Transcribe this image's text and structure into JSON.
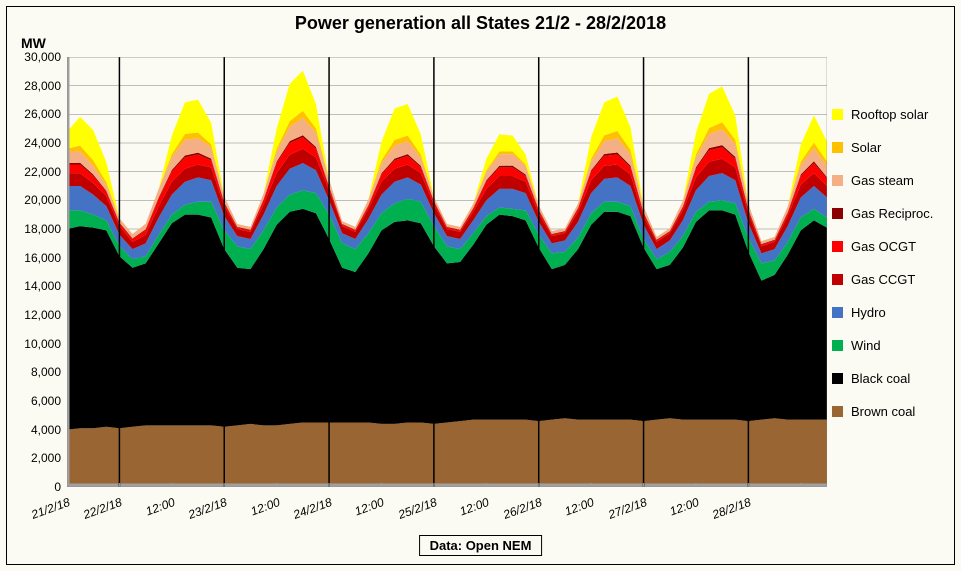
{
  "title": "Power generation all States 21/2 - 28/2/2018",
  "ylabel": "MW",
  "source": "Data: Open NEM",
  "chart": {
    "type": "stacked-area",
    "background_color": "#fcfbf3",
    "grid_color": "#808080",
    "grid_width": 0.5,
    "tick_font_size": 12,
    "title_font_size": 18,
    "label_font_size": 14,
    "ylim": [
      0,
      30000
    ],
    "yticks": [
      0,
      2000,
      4000,
      6000,
      8000,
      10000,
      12000,
      14000,
      16000,
      18000,
      20000,
      22000,
      24000,
      26000,
      28000,
      30000
    ],
    "ytick_labels": [
      "0",
      "2,000",
      "4,000",
      "6,000",
      "8,000",
      "10,000",
      "12,000",
      "14,000",
      "16,000",
      "18,000",
      "20,000",
      "22,000",
      "24,000",
      "26,000",
      "28,000",
      "30,000"
    ],
    "xtick_positions": [
      0,
      1,
      2,
      3,
      4,
      5,
      6,
      7,
      8,
      9,
      10,
      11,
      12,
      13,
      14
    ],
    "xtick_labels": [
      "21/2/18",
      "22/2/18",
      "12:00",
      "23/2/18",
      "12:00",
      "24/2/18",
      "12:00",
      "25/2/18",
      "12:00",
      "26/2/18",
      "12:00",
      "27/2/18",
      "12:00",
      "28/2/18",
      ""
    ],
    "vlines": [
      1,
      3,
      5,
      7,
      9,
      11,
      13
    ],
    "x_domain": [
      0,
      14.5
    ],
    "legend": [
      {
        "label": "Rooftop solar",
        "color": "#ffff00"
      },
      {
        "label": "Solar",
        "color": "#ffc000"
      },
      {
        "label": "Gas steam",
        "color": "#f4b084"
      },
      {
        "label": "Gas Reciproc.",
        "color": "#8b0000"
      },
      {
        "label": "Gas OCGT",
        "color": "#ff0000"
      },
      {
        "label": "Gas CCGT",
        "color": "#c00000"
      },
      {
        "label": "Hydro",
        "color": "#4472c4"
      },
      {
        "label": "Wind",
        "color": "#00b050"
      },
      {
        "label": "Black coal",
        "color": "#000000"
      },
      {
        "label": "Brown coal",
        "color": "#996633"
      }
    ],
    "series_order_bottom_to_top": [
      "Brown coal",
      "Black coal",
      "Wind",
      "Hydro",
      "Gas CCGT",
      "Gas OCGT",
      "Gas Reciproc.",
      "Gas steam",
      "Solar",
      "Rooftop solar"
    ],
    "x": [
      0,
      0.25,
      0.5,
      0.75,
      1,
      1.25,
      1.5,
      1.75,
      2,
      2.25,
      2.5,
      2.75,
      3,
      3.25,
      3.5,
      3.75,
      4,
      4.25,
      4.5,
      4.75,
      5,
      5.25,
      5.5,
      5.75,
      6,
      6.25,
      6.5,
      6.75,
      7,
      7.25,
      7.5,
      7.75,
      8,
      8.25,
      8.5,
      8.75,
      9,
      9.25,
      9.5,
      9.75,
      10,
      10.25,
      10.5,
      10.75,
      11,
      11.25,
      11.5,
      11.75,
      12,
      12.25,
      12.5,
      12.75,
      13,
      13.25,
      13.5,
      13.75,
      14,
      14.25,
      14.5
    ],
    "series": {
      "Brown coal": {
        "color": "#996633",
        "values": [
          4000,
          4100,
          4100,
          4200,
          4100,
          4200,
          4300,
          4300,
          4300,
          4300,
          4300,
          4300,
          4200,
          4300,
          4400,
          4300,
          4300,
          4400,
          4500,
          4500,
          4500,
          4500,
          4500,
          4500,
          4400,
          4400,
          4500,
          4500,
          4400,
          4500,
          4600,
          4700,
          4700,
          4700,
          4700,
          4700,
          4600,
          4700,
          4800,
          4700,
          4700,
          4700,
          4700,
          4700,
          4600,
          4700,
          4800,
          4700,
          4700,
          4700,
          4700,
          4700,
          4600,
          4700,
          4800,
          4700,
          4700,
          4700,
          4700
        ]
      },
      "Black coal": {
        "color": "#000000",
        "values": [
          14000,
          14100,
          14000,
          13700,
          12000,
          11100,
          11300,
          12700,
          14100,
          14700,
          14700,
          14500,
          12400,
          11000,
          10800,
          12300,
          14000,
          14800,
          14900,
          14600,
          12800,
          10800,
          10500,
          11800,
          13500,
          14100,
          14100,
          13900,
          12400,
          11100,
          11100,
          12200,
          13600,
          14300,
          14200,
          13900,
          12100,
          10500,
          10700,
          11900,
          13600,
          14500,
          14500,
          14200,
          12100,
          10500,
          10700,
          12000,
          13800,
          14600,
          14600,
          14300,
          11800,
          9700,
          10000,
          11500,
          13200,
          13900,
          13400
        ]
      },
      "Wind": {
        "color": "#00b050",
        "values": [
          1300,
          1100,
          900,
          700,
          700,
          600,
          500,
          600,
          600,
          700,
          900,
          1100,
          1300,
          1500,
          1400,
          1300,
          1200,
          1200,
          1300,
          1400,
          1700,
          1700,
          1600,
          1400,
          1200,
          1300,
          1500,
          1500,
          1400,
          1200,
          900,
          800,
          600,
          500,
          500,
          700,
          900,
          1100,
          900,
          800,
          800,
          700,
          700,
          700,
          600,
          700,
          900,
          800,
          700,
          600,
          700,
          800,
          1000,
          1200,
          1000,
          900,
          900,
          800,
          700
        ]
      },
      "Hydro": {
        "color": "#4472c4",
        "values": [
          1700,
          1700,
          1400,
          1000,
          800,
          700,
          900,
          1200,
          1400,
          1600,
          1700,
          1500,
          1000,
          700,
          700,
          1100,
          1500,
          1800,
          1900,
          1600,
          1000,
          700,
          700,
          1000,
          1300,
          1500,
          1500,
          1200,
          900,
          700,
          700,
          900,
          1100,
          1300,
          1400,
          1200,
          900,
          700,
          800,
          1100,
          1400,
          1600,
          1700,
          1400,
          1000,
          700,
          800,
          1100,
          1500,
          1800,
          1900,
          1600,
          1000,
          700,
          800,
          1100,
          1400,
          1600,
          1400
        ]
      },
      "Gas CCGT": {
        "color": "#c00000",
        "values": [
          900,
          900,
          800,
          700,
          600,
          500,
          600,
          800,
          900,
          900,
          900,
          900,
          700,
          500,
          500,
          700,
          900,
          1000,
          1000,
          900,
          700,
          500,
          500,
          700,
          900,
          900,
          900,
          800,
          600,
          500,
          500,
          600,
          800,
          900,
          900,
          800,
          600,
          500,
          500,
          700,
          900,
          900,
          900,
          800,
          600,
          500,
          500,
          700,
          900,
          1000,
          1000,
          900,
          700,
          500,
          500,
          700,
          900,
          900,
          800
        ]
      },
      "Gas OCGT": {
        "color": "#ff0000",
        "values": [
          600,
          600,
          500,
          300,
          200,
          200,
          300,
          500,
          700,
          800,
          700,
          500,
          200,
          100,
          100,
          300,
          700,
          800,
          800,
          600,
          200,
          100,
          100,
          200,
          500,
          600,
          600,
          400,
          200,
          100,
          100,
          200,
          500,
          600,
          600,
          400,
          200,
          100,
          100,
          200,
          600,
          700,
          700,
          500,
          200,
          100,
          100,
          200,
          600,
          800,
          800,
          600,
          200,
          100,
          100,
          200,
          600,
          700,
          500
        ]
      },
      "Gas Reciproc.": {
        "color": "#8b0000",
        "values": [
          100,
          120,
          100,
          70,
          50,
          50,
          70,
          100,
          120,
          130,
          130,
          110,
          70,
          50,
          50,
          70,
          100,
          130,
          140,
          120,
          70,
          50,
          50,
          60,
          90,
          110,
          120,
          100,
          60,
          50,
          50,
          60,
          90,
          110,
          120,
          100,
          60,
          50,
          50,
          70,
          100,
          130,
          140,
          120,
          70,
          50,
          50,
          70,
          110,
          140,
          150,
          130,
          70,
          50,
          50,
          70,
          100,
          130,
          110
        ]
      },
      "Gas steam": {
        "color": "#f4b084",
        "values": [
          800,
          800,
          600,
          400,
          300,
          300,
          400,
          600,
          900,
          1100,
          1000,
          800,
          400,
          200,
          200,
          400,
          700,
          1000,
          1200,
          1000,
          500,
          200,
          200,
          400,
          700,
          900,
          900,
          600,
          300,
          200,
          200,
          300,
          600,
          800,
          800,
          600,
          300,
          200,
          200,
          300,
          600,
          900,
          1000,
          800,
          400,
          200,
          200,
          400,
          700,
          1000,
          1100,
          900,
          400,
          200,
          200,
          400,
          700,
          900,
          800
        ]
      },
      "Solar": {
        "color": "#ffc000",
        "values": [
          200,
          400,
          400,
          200,
          0,
          0,
          0,
          0,
          200,
          400,
          400,
          200,
          0,
          0,
          0,
          0,
          200,
          400,
          500,
          300,
          0,
          0,
          0,
          0,
          200,
          400,
          400,
          200,
          0,
          0,
          0,
          0,
          100,
          200,
          200,
          100,
          0,
          0,
          0,
          0,
          200,
          400,
          500,
          300,
          0,
          0,
          0,
          0,
          200,
          400,
          500,
          300,
          0,
          0,
          0,
          0,
          200,
          400,
          300
        ]
      },
      "Rooftop solar": {
        "color": "#ffff00",
        "values": [
          1200,
          2000,
          2100,
          1400,
          0,
          0,
          0,
          0,
          1300,
          2200,
          2300,
          1500,
          0,
          0,
          0,
          0,
          1400,
          2600,
          2800,
          1700,
          0,
          0,
          0,
          0,
          1300,
          2200,
          2200,
          1400,
          0,
          0,
          0,
          0,
          800,
          1200,
          1100,
          700,
          0,
          0,
          0,
          0,
          1500,
          2300,
          2400,
          1600,
          0,
          0,
          0,
          0,
          1500,
          2400,
          2500,
          1700,
          0,
          0,
          0,
          0,
          1200,
          1900,
          1400
        ]
      }
    }
  }
}
